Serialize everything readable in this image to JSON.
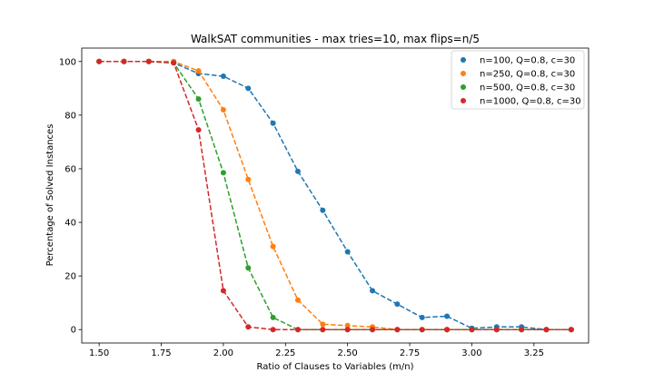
{
  "chart_data": {
    "type": "line",
    "title": "WalkSAT communities - max tries=10, max flips=n/5",
    "xlabel": "Ratio of Clauses to Variables (m/n)",
    "ylabel": "Percentage of Solved Instances",
    "xlim": [
      1.43,
      3.47
    ],
    "ylim": [
      -5,
      105
    ],
    "xticks": [
      1.5,
      1.75,
      2.0,
      2.25,
      2.5,
      2.75,
      3.0,
      3.25
    ],
    "xtick_labels": [
      "1.50",
      "1.75",
      "2.00",
      "2.25",
      "2.50",
      "2.75",
      "3.00",
      "3.25"
    ],
    "yticks": [
      0,
      20,
      40,
      60,
      80,
      100
    ],
    "ytick_labels": [
      "0",
      "20",
      "40",
      "60",
      "80",
      "100"
    ],
    "grid": false,
    "legend_position": "top-right",
    "x": [
      1.5,
      1.6,
      1.7,
      1.8,
      1.9,
      2.0,
      2.1,
      2.2,
      2.3,
      2.4,
      2.5,
      2.6,
      2.7,
      2.8,
      2.9,
      3.0,
      3.1,
      3.2,
      3.3,
      3.4
    ],
    "series": [
      {
        "name": "n=100, Q=0.8, c=30",
        "color": "#1f77b4",
        "values": [
          100,
          100,
          100,
          99.5,
          95.5,
          94.5,
          90,
          77,
          59,
          44.5,
          29,
          14.5,
          9.5,
          4.5,
          5,
          0.5,
          1,
          1,
          0,
          0
        ]
      },
      {
        "name": "n=250, Q=0.8, c=30",
        "color": "#ff7f0e",
        "values": [
          100,
          100,
          100,
          100,
          96.5,
          82,
          56,
          31,
          11,
          2,
          1.5,
          1,
          0,
          0,
          0,
          0,
          0,
          0,
          0,
          0
        ]
      },
      {
        "name": "n=500, Q=0.8, c=30",
        "color": "#2ca02c",
        "values": [
          100,
          100,
          100,
          99.5,
          86,
          58.5,
          23,
          4.5,
          0,
          0,
          0,
          0,
          0,
          0,
          0,
          0,
          0,
          0,
          0,
          0
        ]
      },
      {
        "name": "n=1000, Q=0.8, c=30",
        "color": "#d62728",
        "values": [
          100,
          100,
          100,
          99.5,
          74.5,
          14.5,
          1,
          0,
          0,
          0,
          0,
          0,
          0,
          0,
          0,
          0,
          0,
          0,
          0,
          0
        ]
      }
    ]
  }
}
